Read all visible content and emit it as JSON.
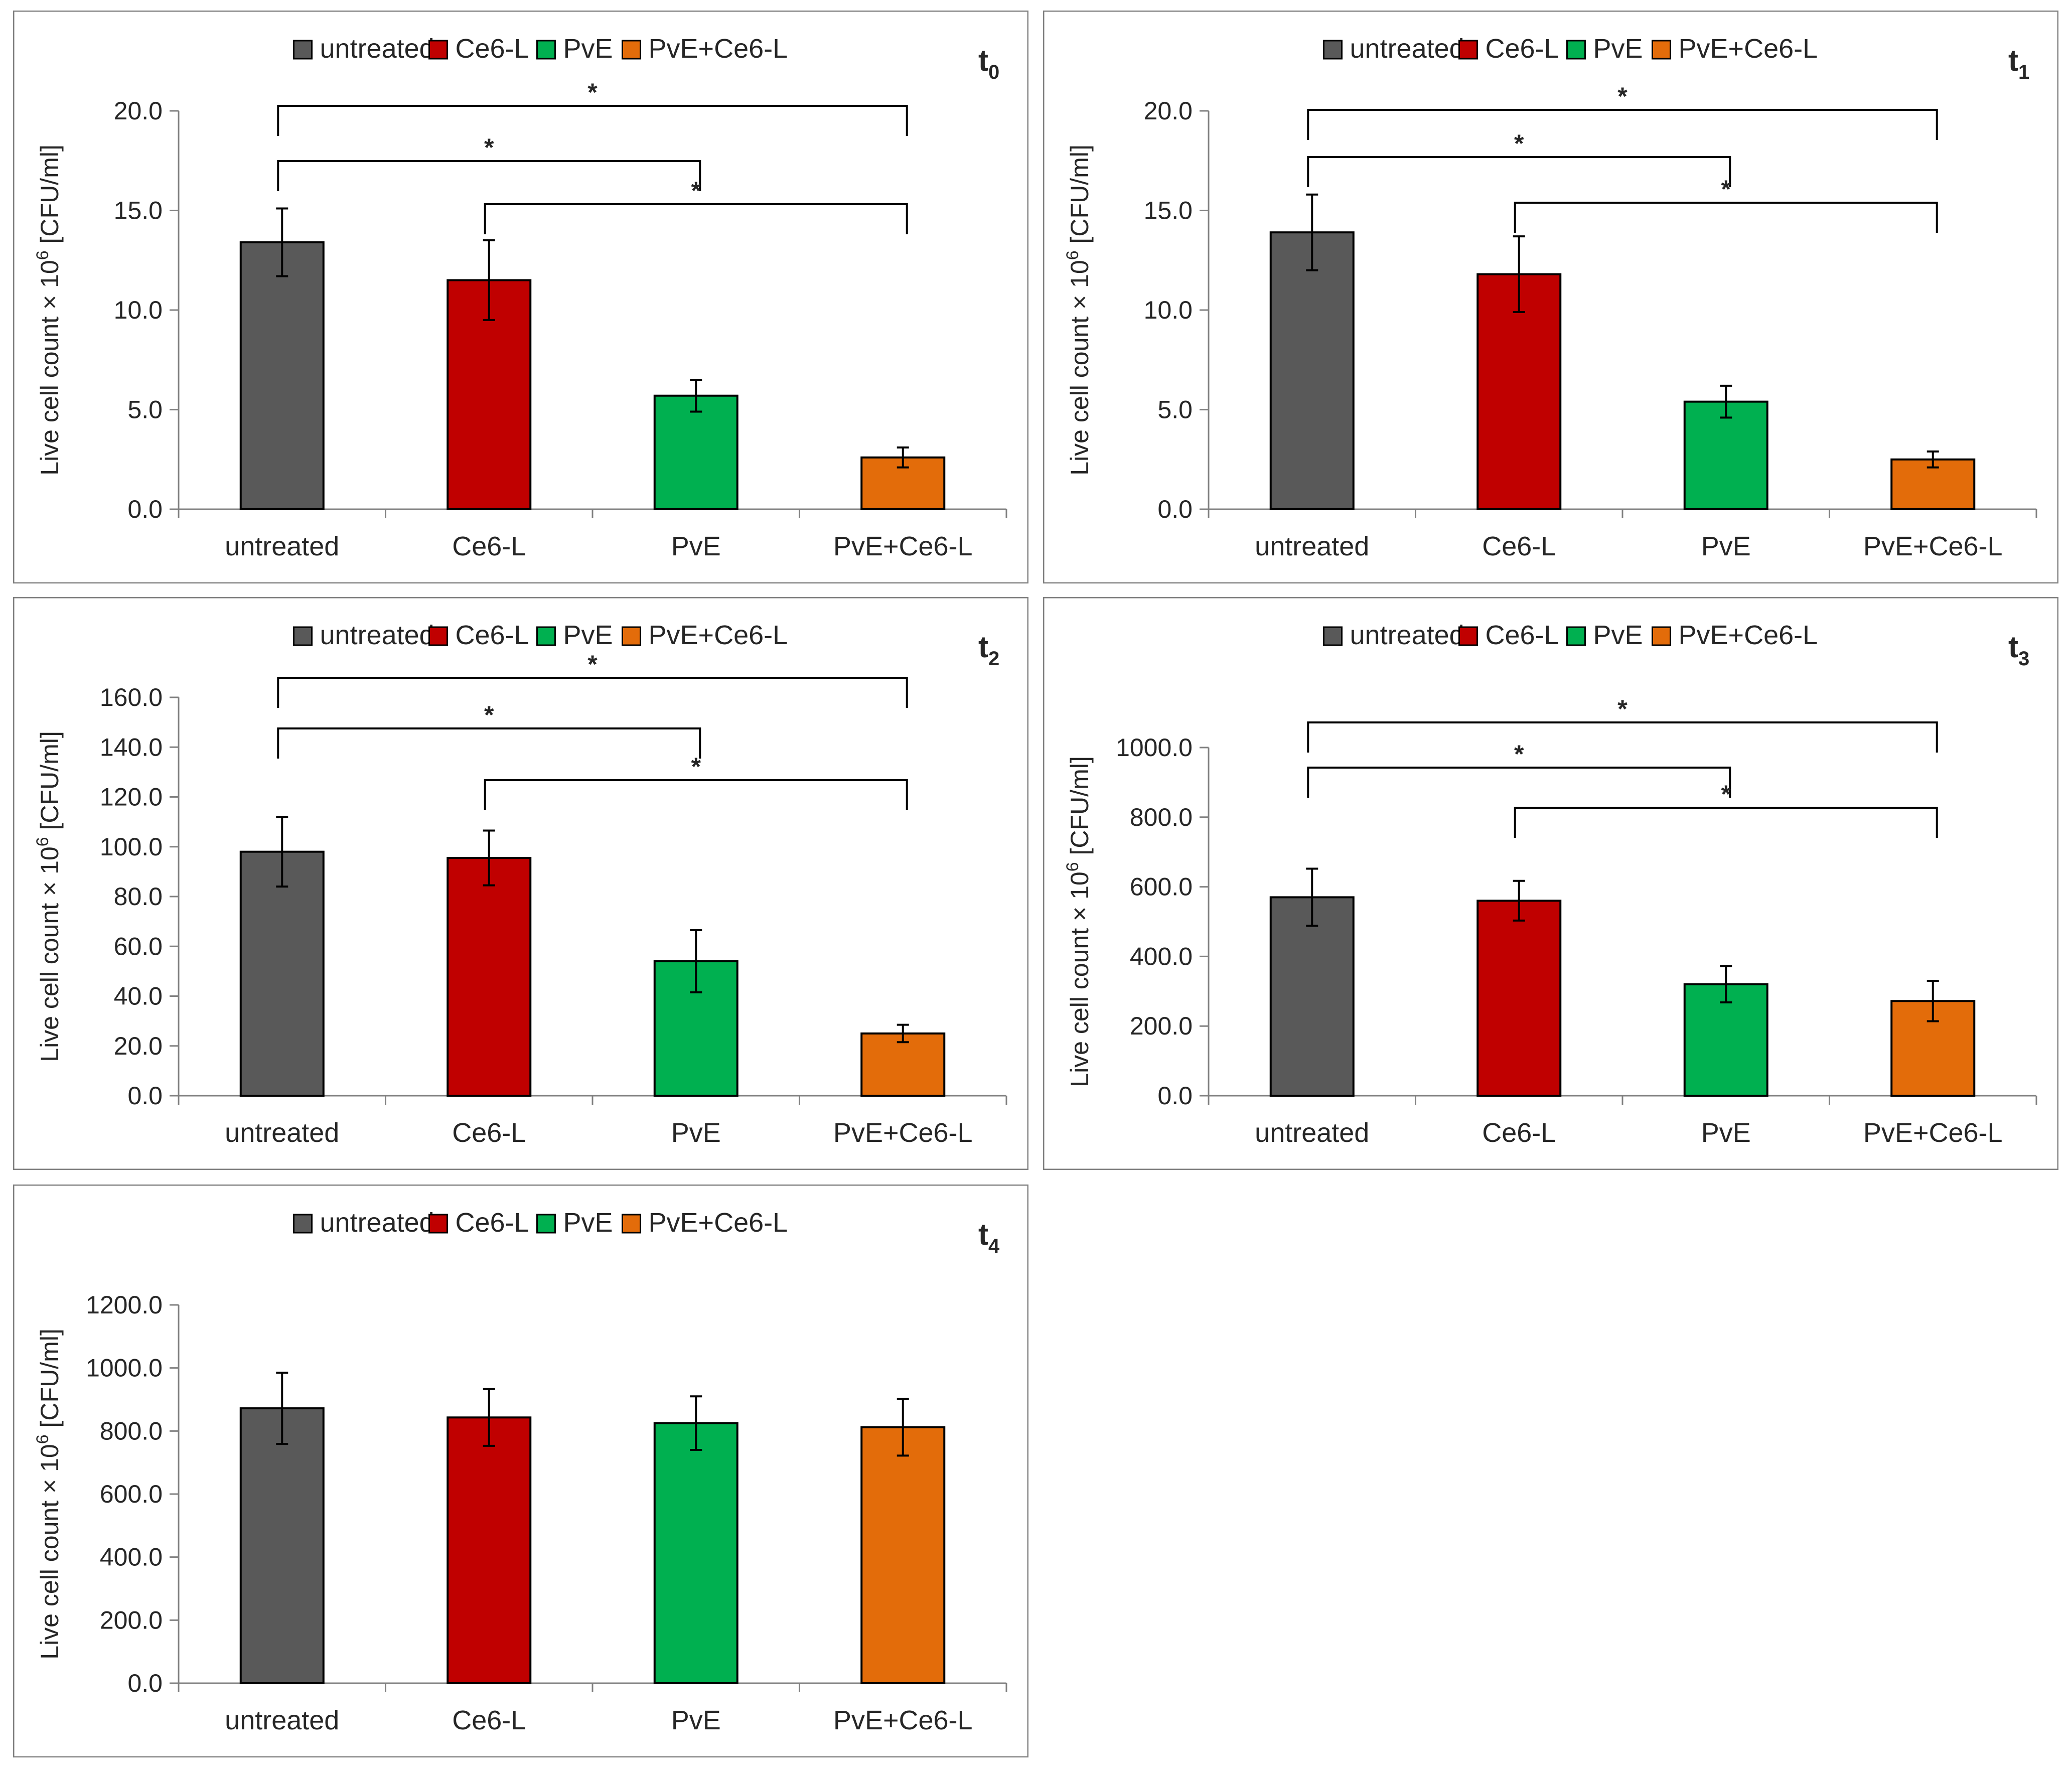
{
  "chart_data": [
    {
      "type": "bar",
      "panel_label": "t",
      "panel_subscript": "0",
      "categories": [
        "untreated",
        "Ce6-L",
        "PvE",
        "PvE+Ce6-L"
      ],
      "values": [
        13.4,
        11.5,
        5.7,
        2.6
      ],
      "errors": [
        1.7,
        2.0,
        0.8,
        0.5
      ],
      "ylabel_main": "Live cell count × 10",
      "ylabel_sup": "6",
      "ylabel_unit": " [CFU/ml]",
      "ylim": [
        0,
        20
      ],
      "ytick_labels": [
        "0.0",
        "5.0",
        "10.0",
        "15.0",
        "20.0"
      ],
      "legend": [
        "untreated",
        "Ce6-L",
        "PvE",
        "PvE+Ce6-L"
      ],
      "legend_position": "top",
      "grid": false,
      "significance": [
        {
          "from": 0,
          "to": 3,
          "label": "*"
        },
        {
          "from": 0,
          "to": 2,
          "label": "*"
        },
        {
          "from": 1,
          "to": 3,
          "label": "*"
        }
      ]
    },
    {
      "type": "bar",
      "panel_label": "t",
      "panel_subscript": "1",
      "categories": [
        "untreated",
        "Ce6-L",
        "PvE",
        "PvE+Ce6-L"
      ],
      "values": [
        13.9,
        11.8,
        5.4,
        2.5
      ],
      "errors": [
        1.9,
        1.9,
        0.8,
        0.4
      ],
      "ylabel_main": "Live cell count × 10",
      "ylabel_sup": "6",
      "ylabel_unit": " [CFU/ml]",
      "ylim": [
        0,
        20
      ],
      "ytick_labels": [
        "0.0",
        "5.0",
        "10.0",
        "15.0",
        "20.0"
      ],
      "legend": [
        "untreated",
        "Ce6-L",
        "PvE",
        "PvE+Ce6-L"
      ],
      "legend_position": "top",
      "grid": false,
      "significance": [
        {
          "from": 0,
          "to": 3,
          "label": "*"
        },
        {
          "from": 0,
          "to": 2,
          "label": "*"
        },
        {
          "from": 1,
          "to": 3,
          "label": "*"
        }
      ]
    },
    {
      "type": "bar",
      "panel_label": "t",
      "panel_subscript": "2",
      "categories": [
        "untreated",
        "Ce6-L",
        "PvE",
        "PvE+Ce6-L"
      ],
      "values": [
        98,
        95.5,
        54,
        25
      ],
      "errors": [
        14,
        11,
        12.5,
        3.5
      ],
      "ylabel_main": "Live cell count × 10",
      "ylabel_sup": "6",
      "ylabel_unit": " [CFU/ml]",
      "ylim": [
        0,
        160
      ],
      "ytick_labels": [
        "0.0",
        "20.0",
        "40.0",
        "60.0",
        "80.0",
        "100.0",
        "120.0",
        "140.0",
        "160.0"
      ],
      "legend": [
        "untreated",
        "Ce6-L",
        "PvE",
        "PvE+Ce6-L"
      ],
      "legend_position": "top",
      "grid": false,
      "significance": [
        {
          "from": 0,
          "to": 3,
          "label": "*"
        },
        {
          "from": 0,
          "to": 2,
          "label": "*"
        },
        {
          "from": 1,
          "to": 3,
          "label": "*"
        }
      ]
    },
    {
      "type": "bar",
      "panel_label": "t",
      "panel_subscript": "3",
      "categories": [
        "untreated",
        "Ce6-L",
        "PvE",
        "PvE+Ce6-L"
      ],
      "values": [
        570,
        560,
        320,
        272
      ],
      "errors": [
        82,
        57,
        52,
        58
      ],
      "ylabel_main": "Live cell count × 10",
      "ylabel_sup": "6",
      "ylabel_unit": " [CFU/ml]",
      "ylim": [
        0,
        1000
      ],
      "ytick_labels": [
        "0.0",
        "200.0",
        "400.0",
        "600.0",
        "800.0",
        "1000.0"
      ],
      "legend": [
        "untreated",
        "Ce6-L",
        "PvE",
        "PvE+Ce6-L"
      ],
      "legend_position": "top",
      "grid": false,
      "significance": [
        {
          "from": 0,
          "to": 3,
          "label": "*"
        },
        {
          "from": 0,
          "to": 2,
          "label": "*"
        },
        {
          "from": 1,
          "to": 3,
          "label": "*"
        }
      ]
    },
    {
      "type": "bar",
      "panel_label": "t",
      "panel_subscript": "4",
      "categories": [
        "untreated",
        "Ce6-L",
        "PvE",
        "PvE+Ce6-L"
      ],
      "values": [
        872,
        843,
        825,
        812
      ],
      "errors": [
        113,
        90,
        85,
        90
      ],
      "ylabel_main": "Live cell count × 10",
      "ylabel_sup": "6",
      "ylabel_unit": " [CFU/ml]",
      "ylim": [
        0,
        1200
      ],
      "ytick_labels": [
        "0.0",
        "200.0",
        "400.0",
        "600.0",
        "800.0",
        "1000.0",
        "1200.0"
      ],
      "legend": [
        "untreated",
        "Ce6-L",
        "PvE",
        "PvE+Ce6-L"
      ],
      "legend_position": "top",
      "grid": false,
      "significance": []
    }
  ],
  "colors": {
    "untreated": "#595959",
    "Ce6-L": "#c00000",
    "PvE": "#00b050",
    "PvE+Ce6-L": "#e36c0a",
    "axis": "#808080",
    "text": "#262626",
    "frame": "#7f7f7f"
  }
}
